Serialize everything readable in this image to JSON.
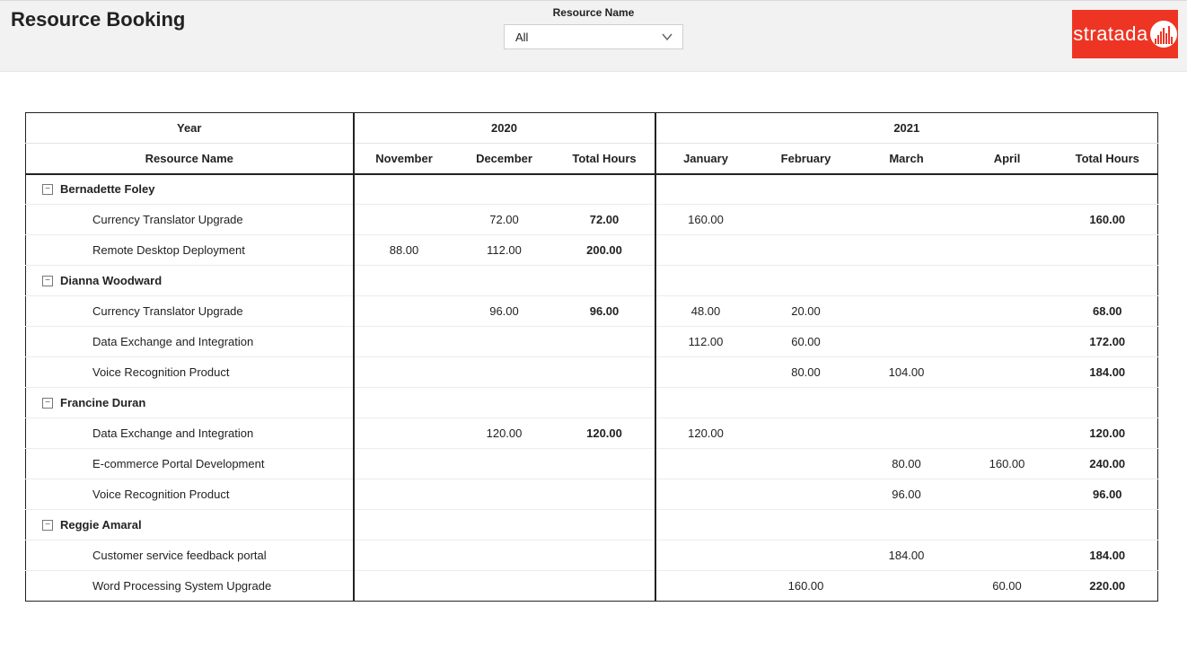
{
  "header": {
    "title": "Resource Booking",
    "filter": {
      "label": "Resource Name",
      "selected": "All"
    },
    "logo_text": "stratada",
    "logo_bg": "#ee3524"
  },
  "matrix": {
    "row_header_top": "Year",
    "row_header_bottom": "Resource Name",
    "year_groups": [
      {
        "year": "2020",
        "months": [
          "November",
          "December"
        ],
        "total_label": "Total Hours"
      },
      {
        "year": "2021",
        "months": [
          "January",
          "February",
          "March",
          "April"
        ],
        "total_label": "Total Hours"
      }
    ],
    "groups": [
      {
        "name": "Bernadette Foley",
        "rows": [
          {
            "name": "Currency Translator Upgrade",
            "y2020": {
              "November": "",
              "December": "72.00",
              "total": "72.00"
            },
            "y2021": {
              "January": "160.00",
              "February": "",
              "March": "",
              "April": "",
              "total": "160.00"
            }
          },
          {
            "name": "Remote Desktop Deployment",
            "y2020": {
              "November": "88.00",
              "December": "112.00",
              "total": "200.00"
            },
            "y2021": {
              "January": "",
              "February": "",
              "March": "",
              "April": "",
              "total": ""
            }
          }
        ]
      },
      {
        "name": "Dianna Woodward",
        "rows": [
          {
            "name": "Currency Translator Upgrade",
            "y2020": {
              "November": "",
              "December": "96.00",
              "total": "96.00"
            },
            "y2021": {
              "January": "48.00",
              "February": "20.00",
              "March": "",
              "April": "",
              "total": "68.00"
            }
          },
          {
            "name": "Data Exchange and Integration",
            "y2020": {
              "November": "",
              "December": "",
              "total": ""
            },
            "y2021": {
              "January": "112.00",
              "February": "60.00",
              "March": "",
              "April": "",
              "total": "172.00"
            }
          },
          {
            "name": "Voice Recognition Product",
            "y2020": {
              "November": "",
              "December": "",
              "total": ""
            },
            "y2021": {
              "January": "",
              "February": "80.00",
              "March": "104.00",
              "April": "",
              "total": "184.00"
            }
          }
        ]
      },
      {
        "name": "Francine Duran",
        "rows": [
          {
            "name": "Data Exchange and Integration",
            "y2020": {
              "November": "",
              "December": "120.00",
              "total": "120.00"
            },
            "y2021": {
              "January": "120.00",
              "February": "",
              "March": "",
              "April": "",
              "total": "120.00"
            }
          },
          {
            "name": "E-commerce Portal Development",
            "y2020": {
              "November": "",
              "December": "",
              "total": ""
            },
            "y2021": {
              "January": "",
              "February": "",
              "March": "80.00",
              "April": "160.00",
              "total": "240.00"
            }
          },
          {
            "name": "Voice Recognition Product",
            "y2020": {
              "November": "",
              "December": "",
              "total": ""
            },
            "y2021": {
              "January": "",
              "February": "",
              "March": "96.00",
              "April": "",
              "total": "96.00"
            }
          }
        ]
      },
      {
        "name": "Reggie Amaral",
        "rows": [
          {
            "name": "Customer service feedback portal",
            "y2020": {
              "November": "",
              "December": "",
              "total": ""
            },
            "y2021": {
              "January": "",
              "February": "",
              "March": "184.00",
              "April": "",
              "total": "184.00"
            }
          },
          {
            "name": "Word Processing System Upgrade",
            "y2020": {
              "November": "",
              "December": "",
              "total": ""
            },
            "y2021": {
              "January": "",
              "February": "160.00",
              "March": "",
              "April": "60.00",
              "total": "220.00"
            }
          }
        ]
      }
    ]
  }
}
